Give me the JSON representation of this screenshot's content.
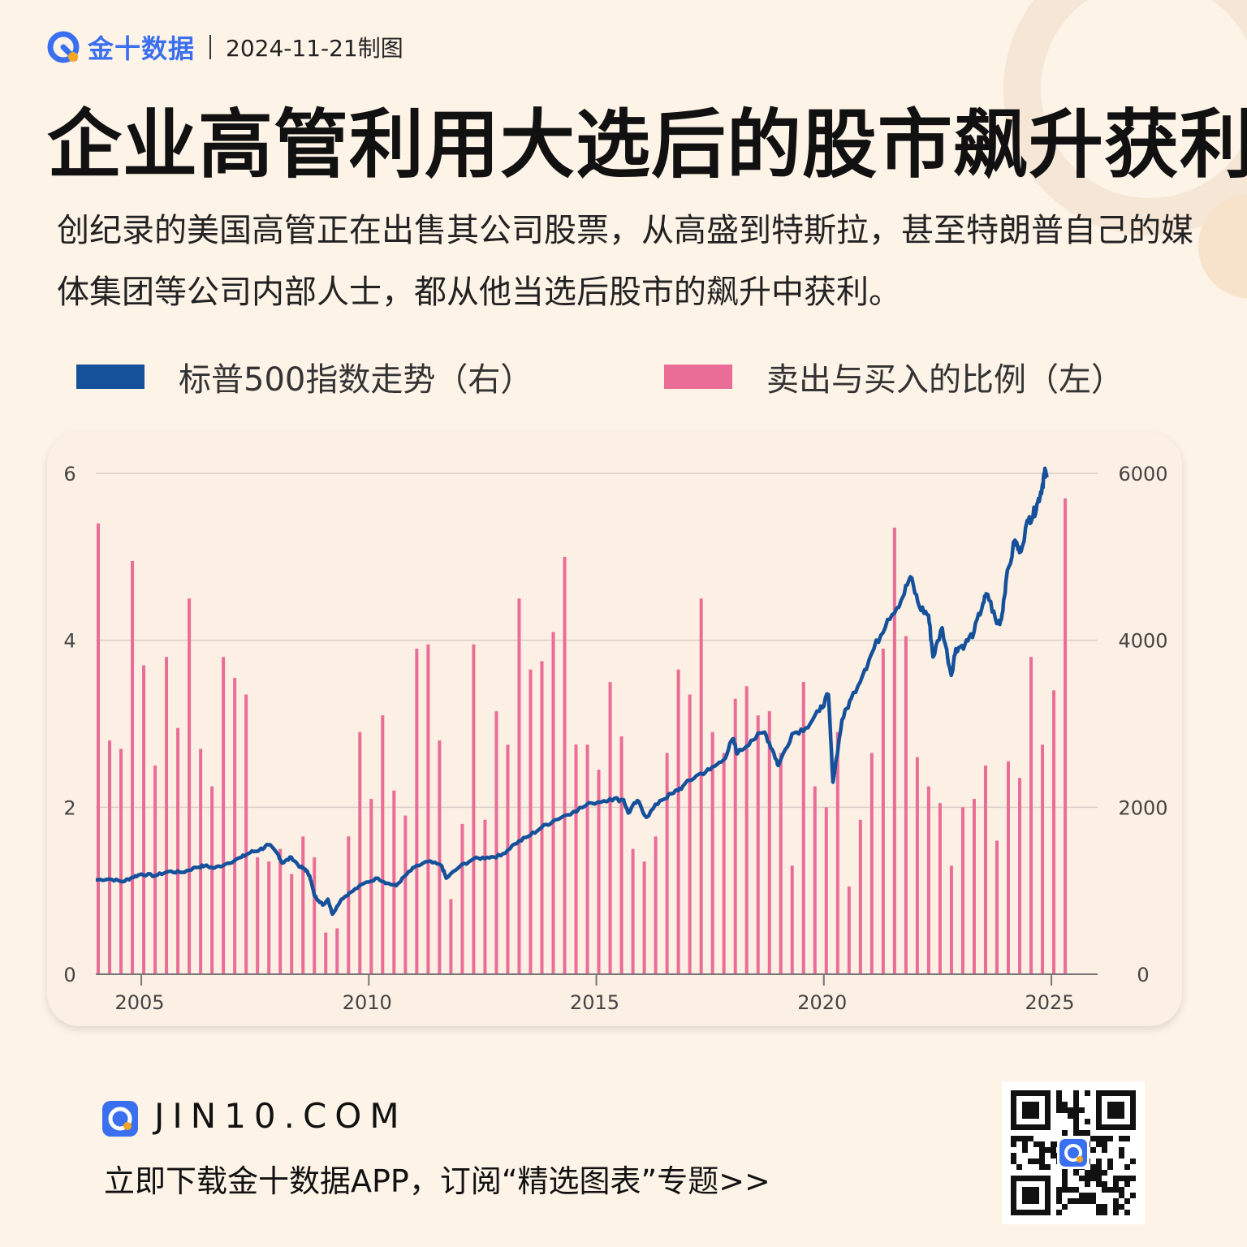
{
  "header": {
    "brand": "金十数据",
    "date": "2024-11-21制图"
  },
  "title": "企业高管利用大选后的股市飙升获利",
  "subtitle": "创纪录的美国高管正在出售其公司股票，从高盛到特斯拉，甚至特朗普自己的媒体集团等公司内部人士，都从他当选后股市的飙升中获利。",
  "colors": {
    "background": "#fdf3e7",
    "panel": "#fcefe3",
    "sp500_line": "#15519b",
    "ratio_bars": "#e96d97",
    "brand_blue": "#3a6ff0"
  },
  "legend": [
    {
      "label": "标普500指数走势（右）",
      "color": "#15519b"
    },
    {
      "label": "卖出与买入的比例（左）",
      "color": "#e96d97"
    }
  ],
  "chart_data": {
    "type": "bar+line",
    "x_ticks": [
      "2005",
      "2010",
      "2015",
      "2020",
      "2025"
    ],
    "x_range": [
      2004.0,
      2025.0
    ],
    "y_left": {
      "ticks": [
        "0",
        "2",
        "4",
        "6"
      ],
      "range": [
        0,
        6
      ]
    },
    "y_right": {
      "ticks": [
        "0",
        "2000",
        "4000",
        "6000"
      ],
      "range": [
        0,
        6000
      ]
    },
    "grid": true,
    "bar_series": {
      "name": "卖出与买入的比例（左）",
      "axis": "left",
      "start": 2004.0,
      "step": 0.25,
      "values": [
        5.4,
        2.8,
        2.7,
        4.95,
        3.7,
        2.5,
        3.8,
        2.95,
        4.5,
        2.7,
        2.25,
        3.8,
        3.55,
        3.35,
        1.4,
        1.35,
        1.5,
        1.2,
        1.65,
        1.4,
        0.5,
        0.55,
        1.65,
        2.9,
        2.1,
        3.1,
        2.2,
        1.9,
        3.9,
        3.95,
        2.8,
        0.9,
        1.8,
        3.95,
        1.85,
        3.15,
        2.75,
        4.5,
        3.65,
        3.75,
        4.1,
        5.0,
        2.75,
        2.75,
        2.45,
        3.5,
        2.85,
        1.5,
        1.35,
        1.65,
        2.65,
        3.65,
        3.35,
        4.5,
        2.9,
        2.65,
        3.3,
        3.45,
        3.1,
        3.15,
        2.65,
        1.3,
        3.5,
        2.25,
        2.0,
        2.9,
        1.05,
        1.85,
        2.65,
        3.9,
        5.35,
        4.05,
        2.6,
        2.25,
        2.05,
        1.3,
        2.0,
        2.1,
        2.5,
        1.6,
        2.55,
        2.35,
        3.8,
        2.75,
        3.4,
        5.7
      ]
    },
    "line_series": {
      "name": "标普500指数走势（右）",
      "axis": "right",
      "points": [
        [
          2004.0,
          1130
        ],
        [
          2004.3,
          1140
        ],
        [
          2004.6,
          1110
        ],
        [
          2004.8,
          1160
        ],
        [
          2005.0,
          1200
        ],
        [
          2005.3,
          1180
        ],
        [
          2005.6,
          1230
        ],
        [
          2005.9,
          1220
        ],
        [
          2006.2,
          1280
        ],
        [
          2006.4,
          1300
        ],
        [
          2006.6,
          1270
        ],
        [
          2006.9,
          1330
        ],
        [
          2007.2,
          1400
        ],
        [
          2007.4,
          1460
        ],
        [
          2007.6,
          1490
        ],
        [
          2007.8,
          1550
        ],
        [
          2008.0,
          1440
        ],
        [
          2008.1,
          1330
        ],
        [
          2008.3,
          1400
        ],
        [
          2008.5,
          1280
        ],
        [
          2008.6,
          1260
        ],
        [
          2008.7,
          1180
        ],
        [
          2008.8,
          950
        ],
        [
          2008.9,
          880
        ],
        [
          2009.0,
          830
        ],
        [
          2009.1,
          900
        ],
        [
          2009.2,
          720
        ],
        [
          2009.4,
          900
        ],
        [
          2009.6,
          980
        ],
        [
          2009.9,
          1090
        ],
        [
          2010.2,
          1150
        ],
        [
          2010.4,
          1090
        ],
        [
          2010.6,
          1060
        ],
        [
          2010.8,
          1180
        ],
        [
          2011.0,
          1280
        ],
        [
          2011.3,
          1350
        ],
        [
          2011.6,
          1300
        ],
        [
          2011.7,
          1150
        ],
        [
          2012.0,
          1290
        ],
        [
          2012.3,
          1380
        ],
        [
          2012.6,
          1400
        ],
        [
          2012.9,
          1420
        ],
        [
          2013.2,
          1560
        ],
        [
          2013.5,
          1650
        ],
        [
          2013.8,
          1760
        ],
        [
          2014.1,
          1850
        ],
        [
          2014.5,
          1950
        ],
        [
          2014.9,
          2050
        ],
        [
          2015.3,
          2100
        ],
        [
          2015.6,
          2090
        ],
        [
          2015.7,
          1930
        ],
        [
          2015.9,
          2080
        ],
        [
          2016.1,
          1880
        ],
        [
          2016.4,
          2080
        ],
        [
          2016.7,
          2170
        ],
        [
          2016.9,
          2250
        ],
        [
          2017.2,
          2380
        ],
        [
          2017.5,
          2450
        ],
        [
          2017.8,
          2570
        ],
        [
          2018.0,
          2820
        ],
        [
          2018.1,
          2640
        ],
        [
          2018.4,
          2800
        ],
        [
          2018.7,
          2900
        ],
        [
          2018.9,
          2650
        ],
        [
          2019.0,
          2500
        ],
        [
          2019.3,
          2880
        ],
        [
          2019.6,
          2950
        ],
        [
          2019.9,
          3150
        ],
        [
          2020.1,
          3350
        ],
        [
          2020.2,
          2300
        ],
        [
          2020.4,
          3050
        ],
        [
          2020.6,
          3300
        ],
        [
          2020.9,
          3650
        ],
        [
          2021.1,
          3900
        ],
        [
          2021.4,
          4250
        ],
        [
          2021.7,
          4480
        ],
        [
          2021.9,
          4760
        ],
        [
          2022.1,
          4400
        ],
        [
          2022.3,
          4300
        ],
        [
          2022.4,
          3800
        ],
        [
          2022.6,
          4150
        ],
        [
          2022.8,
          3580
        ],
        [
          2022.9,
          3900
        ],
        [
          2023.1,
          3950
        ],
        [
          2023.3,
          4100
        ],
        [
          2023.5,
          4450
        ],
        [
          2023.6,
          4550
        ],
        [
          2023.8,
          4200
        ],
        [
          2023.9,
          4250
        ],
        [
          2024.0,
          4700
        ],
        [
          2024.2,
          5200
        ],
        [
          2024.3,
          5050
        ],
        [
          2024.5,
          5450
        ],
        [
          2024.6,
          5500
        ],
        [
          2024.7,
          5650
        ],
        [
          2024.8,
          5850
        ],
        [
          2024.85,
          6000
        ],
        [
          2024.9,
          5950
        ]
      ]
    }
  },
  "footer": {
    "site": "JIN10.COM",
    "cta": "立即下载金十数据APP，订阅“精选图表”专题>>"
  },
  "icons": {
    "logo": "jin10-logo-icon",
    "qr": "qr-code-icon"
  }
}
